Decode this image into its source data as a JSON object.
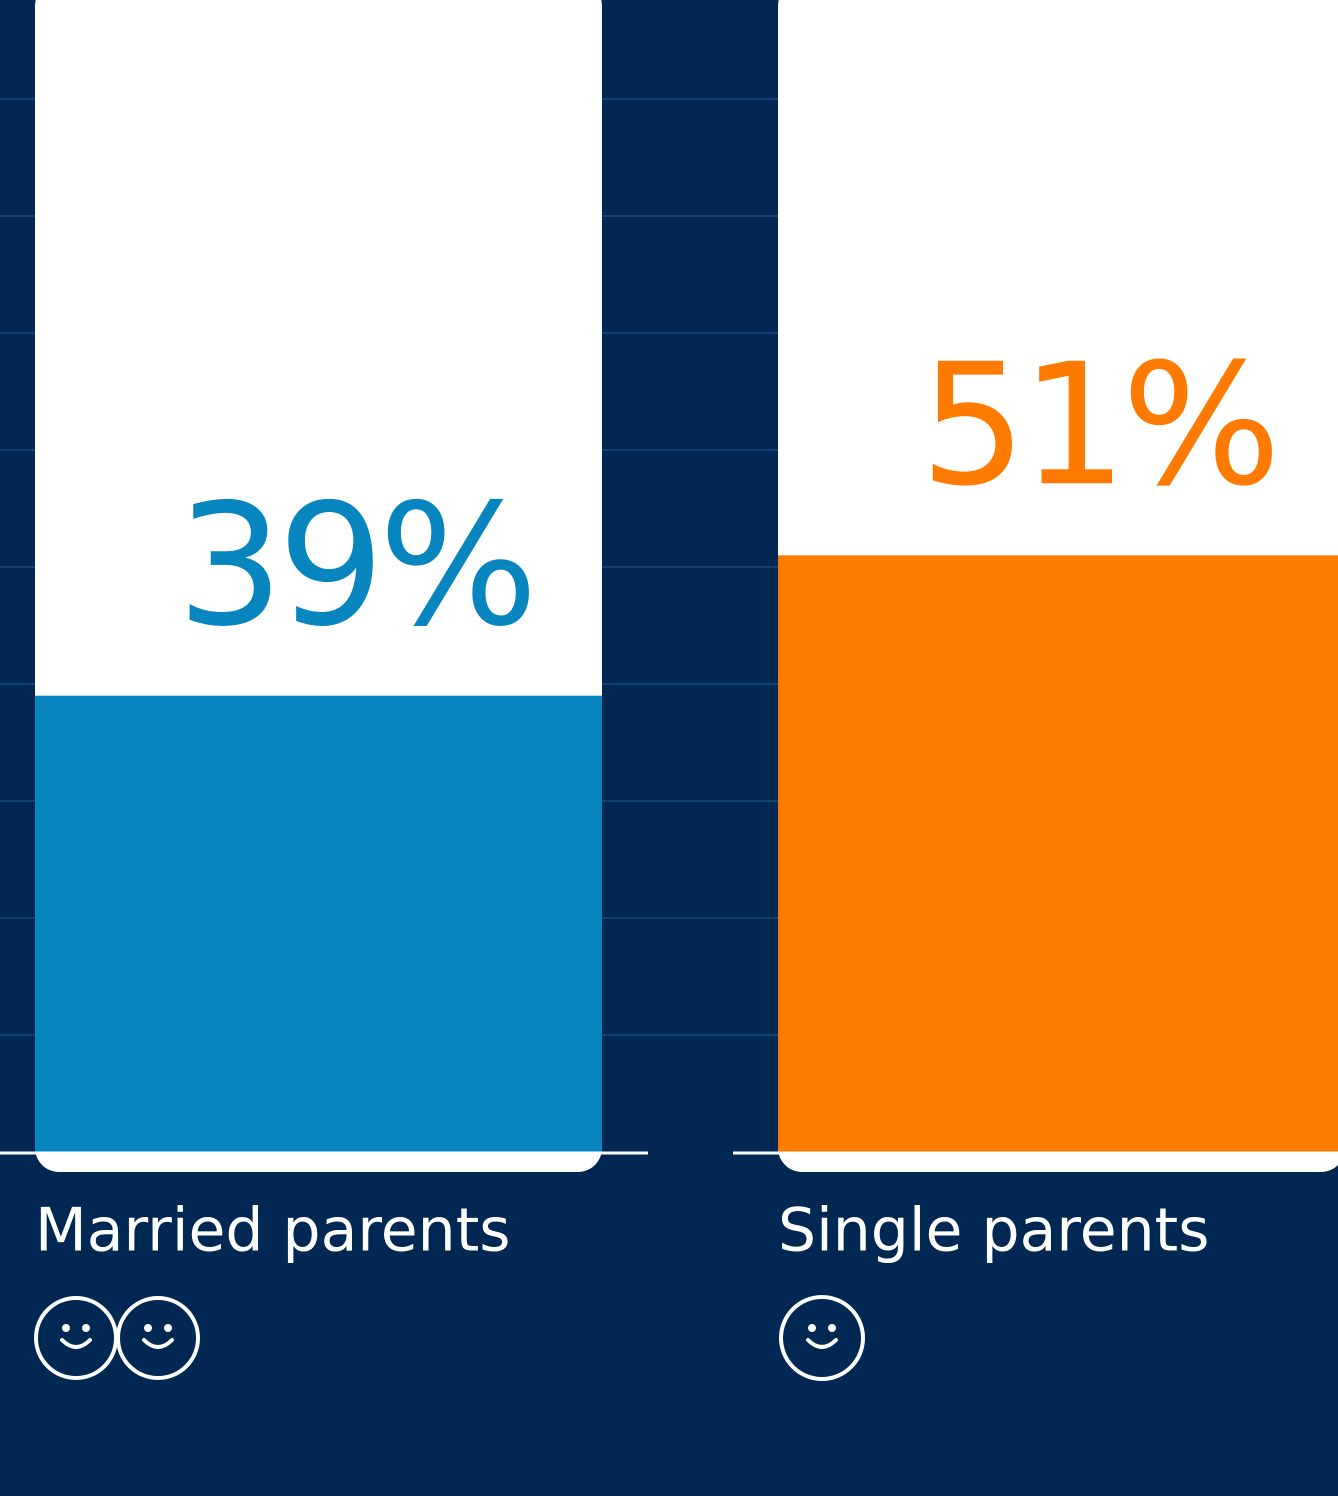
{
  "chart_data": {
    "type": "bar",
    "categories": [
      "Married parents",
      "Single parents"
    ],
    "values": [
      39,
      51
    ],
    "value_labels": [
      "39%",
      "51%"
    ],
    "colors": [
      "#0785be",
      "#ff7a00"
    ],
    "ylim": [
      0,
      100
    ],
    "yticks": [
      10,
      20,
      30,
      40,
      50,
      60,
      70,
      80,
      90
    ],
    "grid": true
  }
}
